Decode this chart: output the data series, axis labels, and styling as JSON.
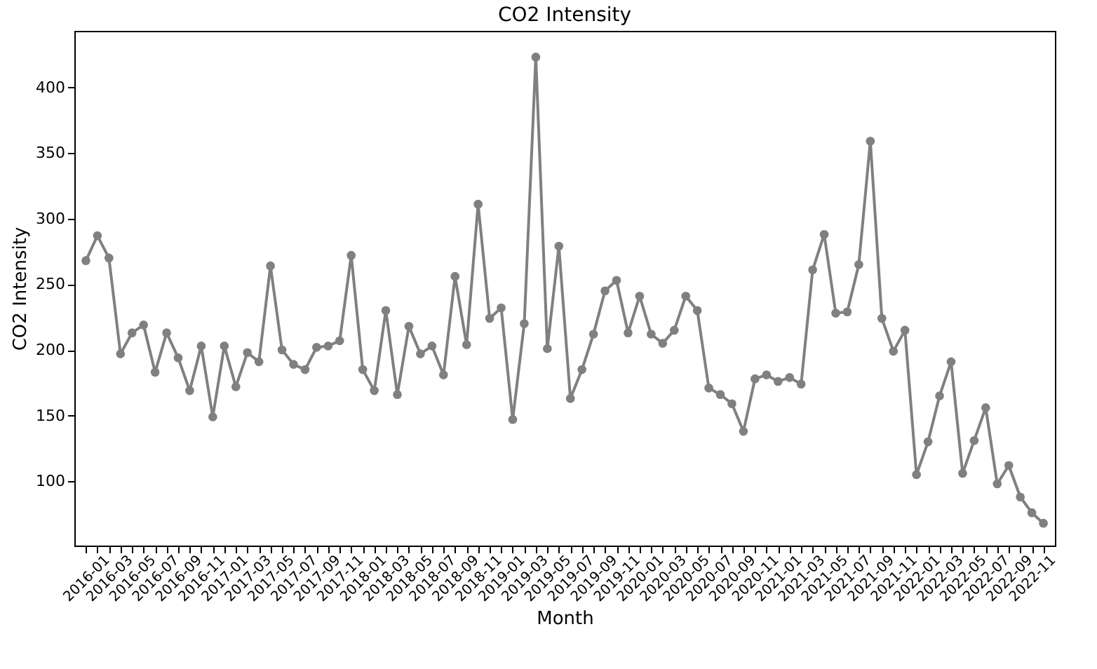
{
  "chart_data": {
    "type": "line",
    "title": "CO2 Intensity",
    "xlabel": "Month",
    "ylabel": "CO2 Intensity",
    "categories": [
      "2016-01",
      null,
      "2016-03",
      null,
      "2016-05",
      null,
      "2016-07",
      null,
      "2016-09",
      null,
      "2016-11",
      null,
      "2017-01",
      null,
      "2017-03",
      null,
      "2017-05",
      null,
      "2017-07",
      null,
      "2017-09",
      null,
      "2017-11",
      null,
      "2018-01",
      null,
      "2018-03",
      null,
      "2018-05",
      null,
      "2018-07",
      null,
      "2018-09",
      null,
      "2018-11",
      null,
      "2019-01",
      null,
      "2019-03",
      null,
      "2019-05",
      null,
      "2019-07",
      null,
      "2019-09",
      null,
      "2019-11",
      null,
      "2020-01",
      null,
      "2020-03",
      null,
      "2020-05",
      null,
      "2020-07",
      null,
      "2020-09",
      null,
      "2020-11",
      null,
      "2021-01",
      null,
      "2021-03",
      null,
      "2021-05",
      null,
      "2021-07",
      null,
      "2021-09",
      null,
      "2021-11",
      null,
      "2022-01",
      null,
      "2022-03",
      null,
      "2022-05",
      null,
      "2022-07",
      null,
      "2022-09",
      null,
      "2022-11",
      null
    ],
    "series": [
      {
        "color": "#808080",
        "values": [
          268,
          287,
          270,
          197,
          213,
          219,
          183,
          213,
          194,
          169,
          203,
          149,
          203,
          172,
          198,
          191,
          264,
          200,
          189,
          185,
          202,
          203,
          207,
          272,
          185,
          169,
          230,
          166,
          218,
          197,
          203,
          181,
          256,
          204,
          311,
          224,
          232,
          147,
          220,
          423,
          201,
          279,
          163,
          185,
          212,
          245,
          253,
          213,
          241,
          212,
          205,
          215,
          241,
          230,
          171,
          166,
          159,
          138,
          178,
          181,
          176,
          179,
          174,
          261,
          288,
          228,
          229,
          265,
          359,
          224,
          199,
          215,
          105,
          130,
          165,
          191,
          106,
          131,
          156,
          98,
          112,
          88,
          76,
          68
        ]
      }
    ],
    "ylim": [
      51,
      443
    ],
    "yticks": [
      100,
      150,
      200,
      250,
      300,
      350,
      400
    ],
    "grid": false,
    "marker": "circle",
    "line_style": "solid",
    "legend": false
  }
}
